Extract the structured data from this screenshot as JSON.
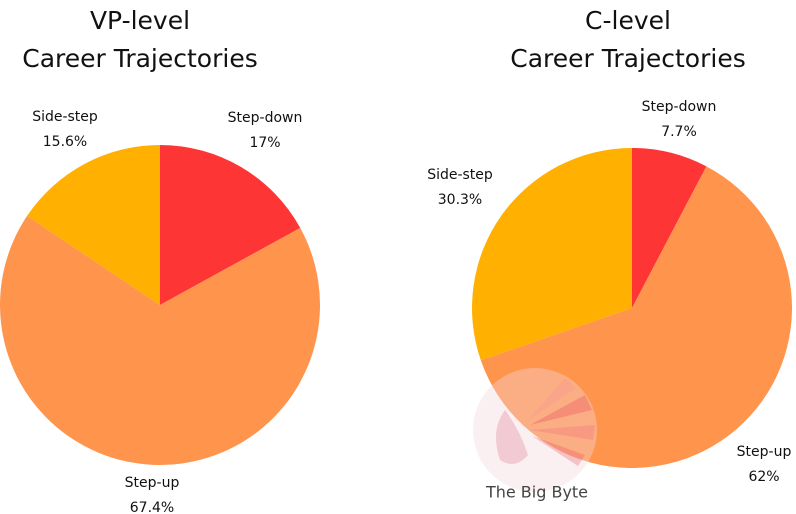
{
  "chart_data": [
    {
      "type": "pie",
      "title": [
        "VP-level",
        "Career Trajectories"
      ],
      "categories": [
        "Step-down",
        "Step-up",
        "Side-step"
      ],
      "values": [
        17,
        67.4,
        15.6
      ],
      "value_labels": [
        "17%",
        "67.4%",
        "15.6%"
      ],
      "colors": [
        "#fe3535",
        "#ff944d",
        "#ffb000"
      ]
    },
    {
      "type": "pie",
      "title": [
        "C-level",
        "Career Trajectories"
      ],
      "categories": [
        "Step-down",
        "Step-up",
        "Side-step"
      ],
      "values": [
        7.7,
        62,
        30.3
      ],
      "value_labels": [
        "7.7%",
        "62%",
        "30.3%"
      ],
      "colors": [
        "#fe3535",
        "#ff944d",
        "#ffb000"
      ]
    }
  ],
  "watermark": "The Big Byte"
}
